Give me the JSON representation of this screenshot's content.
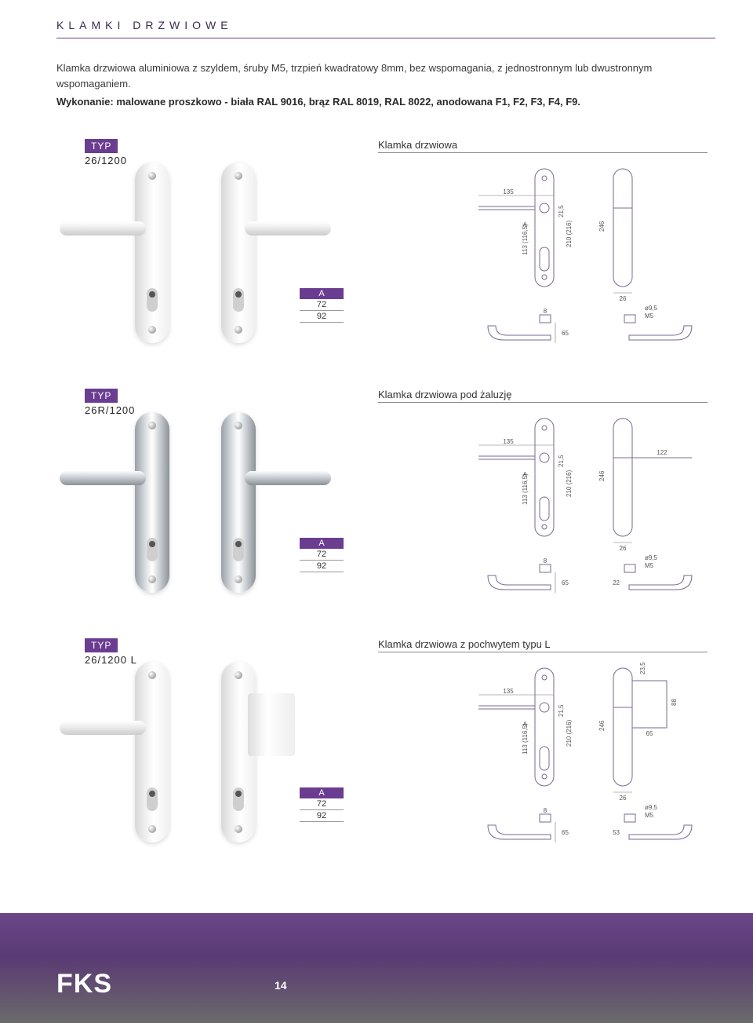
{
  "header": {
    "title": "KLAMKI DRZWIOWE"
  },
  "intro": {
    "line1": "Klamka drzwiowa aluminiowa z szyldem, śruby M5, trzpień kwadratowy 8mm, bez wspomagania, z jednostronnym lub dwustronnym wspomaganiem.",
    "line2": "Wykonanie: malowane proszkowo - biała RAL 9016, brąz RAL 8019, RAL 8022, anodowana F1, F2, F3, F4, F9."
  },
  "colors": {
    "accent": "#6b3d91",
    "text": "#333333",
    "tech_stroke": "#7a6a90",
    "page_bg": "#ffffff"
  },
  "a_table": {
    "header": "A",
    "values": [
      "72",
      "92"
    ]
  },
  "dims_common": {
    "width_135": "135",
    "h_246": "246",
    "h_210_216": "210 (216)",
    "h_113_116": "113 (116,5)",
    "h_21_5": "21,5",
    "plate_w_26": "26",
    "drop_65": "65",
    "hole_9_5": "ø9,5",
    "screw_m5": "M5",
    "spindle_8": "8",
    "label_A": "A"
  },
  "items": [
    {
      "typ_label": "TYP",
      "typ_code": "26/1200",
      "title": "Klamka drzwiowa",
      "photo_style": "white",
      "extra_dims": {}
    },
    {
      "typ_label": "TYP",
      "typ_code": "26R/1200",
      "title": "Klamka drzwiowa pod żaluzję",
      "photo_style": "chrome",
      "extra_dims": {
        "lever_122": "122",
        "drop_22": "22"
      }
    },
    {
      "typ_label": "TYP",
      "typ_code": "26/1200 L",
      "title": "Klamka drzwiowa z pochwytem typu L",
      "photo_style": "white_L",
      "extra_dims": {
        "l_top_23_5": "23,5",
        "l_h_88": "88",
        "l_w_65": "65",
        "l_drop_53": "53"
      }
    }
  ],
  "footer": {
    "logo": "FKS",
    "page": "14"
  }
}
